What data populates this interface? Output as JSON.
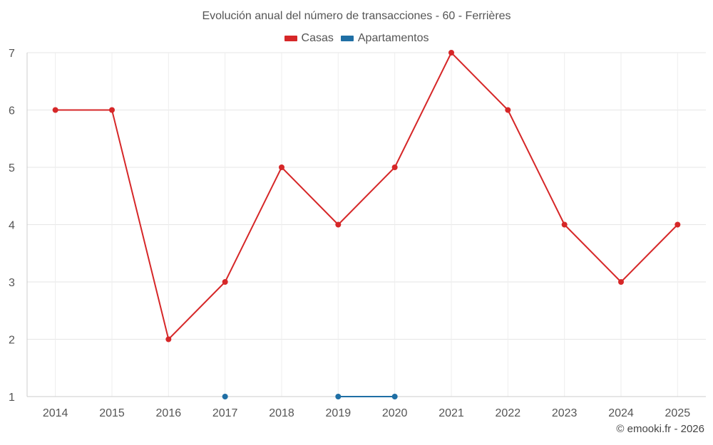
{
  "chart_data": {
    "type": "line",
    "title": "Evolución anual del número de transacciones - 60 - Ferrières",
    "x": [
      "2014",
      "2015",
      "2016",
      "2017",
      "2018",
      "2019",
      "2020",
      "2021",
      "2022",
      "2023",
      "2024",
      "2025"
    ],
    "series": [
      {
        "name": "Casas",
        "color": "#d62728",
        "values": [
          6,
          6,
          2,
          3,
          5,
          4,
          5,
          7,
          6,
          4,
          3,
          4
        ]
      },
      {
        "name": "Apartamentos",
        "color": "#1f6fa5",
        "values": [
          null,
          null,
          null,
          1,
          null,
          1,
          1,
          null,
          null,
          null,
          null,
          null
        ]
      }
    ],
    "yticks": [
      "1",
      "2",
      "3",
      "4",
      "5",
      "6",
      "7"
    ],
    "ylim": [
      1,
      7
    ],
    "grid": true,
    "legend_position": "top-center",
    "xlabel": "",
    "ylabel": ""
  },
  "footer": {
    "credit": "© emooki.fr - 2026"
  }
}
